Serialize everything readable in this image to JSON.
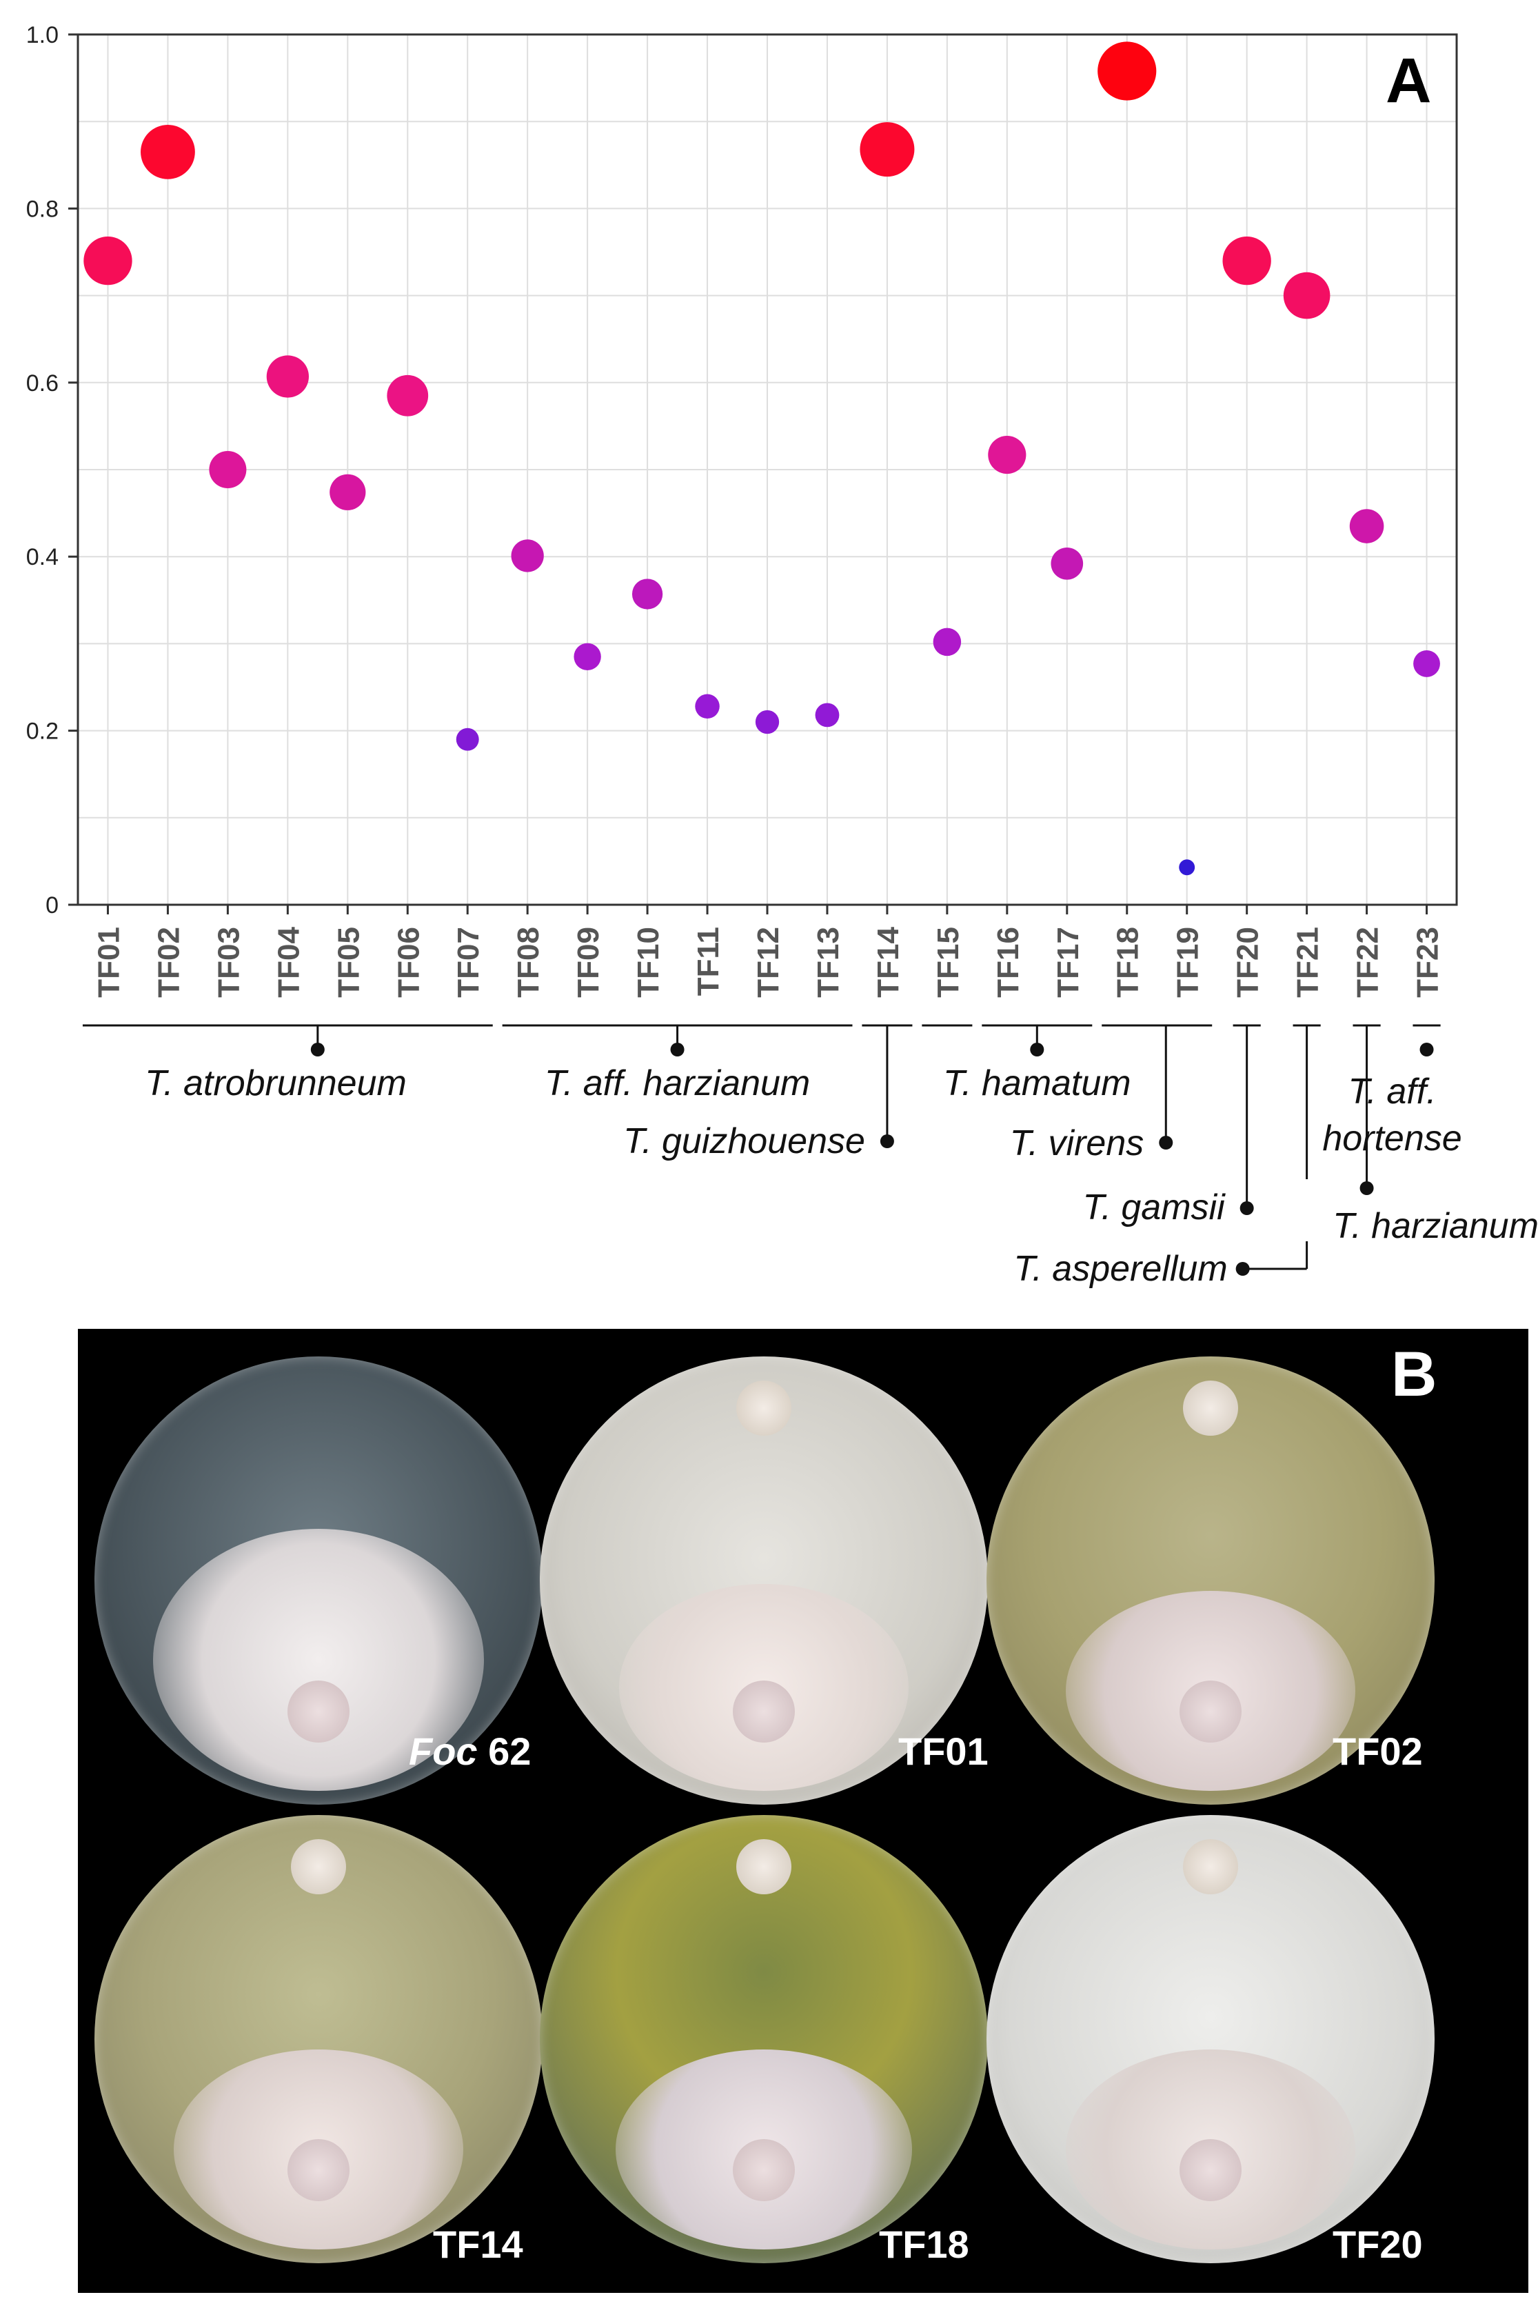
{
  "panel_a_letter": "A",
  "panel_b_letter": "B",
  "colors": {
    "high": "#ff0000",
    "mid": "#e8158e",
    "low": "#a31ad6",
    "min": "#1a1ad6"
  },
  "chart_data": {
    "type": "scatter",
    "title": "",
    "xlabel": "",
    "ylabel": "",
    "ylim": [
      0,
      1.0
    ],
    "yticks": [
      "0",
      "0.2",
      "0.4",
      "0.6",
      "0.8",
      "1.0"
    ],
    "grid": true,
    "categories": [
      "TF01",
      "TF02",
      "TF03",
      "TF04",
      "TF05",
      "TF06",
      "TF07",
      "TF08",
      "TF09",
      "TF10",
      "TF11",
      "TF12",
      "TF13",
      "TF14",
      "TF15",
      "TF16",
      "TF17",
      "TF18",
      "TF19",
      "TF20",
      "TF21",
      "TF22",
      "TF23"
    ],
    "values": [
      0.74,
      0.865,
      0.5,
      0.607,
      0.474,
      0.585,
      0.19,
      0.401,
      0.285,
      0.357,
      0.228,
      0.21,
      0.218,
      0.868,
      0.302,
      0.517,
      0.392,
      0.958,
      0.043,
      0.74,
      0.7,
      0.435,
      0.277
    ],
    "marker_note": "marker size and color scale with value",
    "species_groups": [
      {
        "label": "T. atrobrunneum",
        "from": 0,
        "to": 6
      },
      {
        "label": "T. aff. harzianum",
        "from": 7,
        "to": 12
      },
      {
        "label": "T. guizhouense",
        "from": 13,
        "to": 13
      },
      {
        "label": "T. hamatum",
        "from": 14,
        "to": 16
      },
      {
        "label": "T. virens",
        "from": 17,
        "to": 18
      },
      {
        "label": "T. gamsii",
        "from": 19,
        "to": 19
      },
      {
        "label": "T. harzianum",
        "from": 21,
        "to": 21
      },
      {
        "label": "T. asperellum",
        "from": 20,
        "to": 20
      },
      {
        "label": "T. aff.",
        "from": 22,
        "to": 22
      },
      {
        "label": "hortense",
        "from": 22,
        "to": 22
      }
    ]
  },
  "plates": [
    {
      "label_italic": "Foc",
      "label_rest": " 62"
    },
    {
      "label_italic": "",
      "label_rest": "TF01"
    },
    {
      "label_italic": "",
      "label_rest": "TF02"
    },
    {
      "label_italic": "",
      "label_rest": "TF14"
    },
    {
      "label_italic": "",
      "label_rest": "TF18"
    },
    {
      "label_italic": "",
      "label_rest": "TF20"
    }
  ]
}
